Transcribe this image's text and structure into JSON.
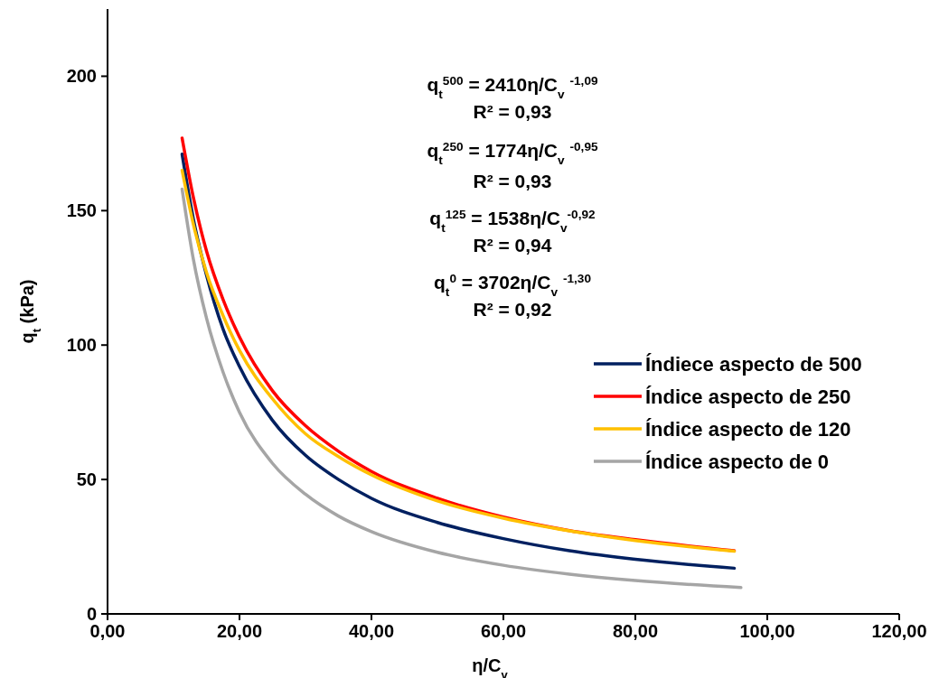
{
  "chart_data": {
    "type": "line",
    "xlabel": "η/C$_{v}$",
    "ylabel": "q$_{t}$ (kPa)",
    "xlim": [
      0,
      120
    ],
    "ylim": [
      0,
      225
    ],
    "xticks": [
      {
        "value": 0,
        "label": "0,00"
      },
      {
        "value": 20,
        "label": "20,00"
      },
      {
        "value": 40,
        "label": "40,00"
      },
      {
        "value": 60,
        "label": "60,00"
      },
      {
        "value": 80,
        "label": "80,00"
      },
      {
        "value": 100,
        "label": "100,00"
      },
      {
        "value": 120,
        "label": "120,00"
      }
    ],
    "yticks": [
      0,
      50,
      100,
      150,
      200
    ],
    "grid": false,
    "legend": "right",
    "marker": "none",
    "line_style": "solid",
    "x": [
      11.3,
      13,
      15,
      17.5,
      20,
      25,
      30,
      35,
      40,
      50,
      60,
      70,
      80,
      95
    ],
    "series": [
      {
        "name": "Índiece aspecto de 500",
        "color": "#002060",
        "values": [
          171,
          147,
          126,
          106,
          92,
          72,
          59,
          50,
          43,
          34,
          28,
          23.5,
          20.3,
          17
        ]
      },
      {
        "name": "Índice aspecto de 250",
        "color": "#ff0000",
        "values": [
          177,
          155,
          135,
          117,
          103,
          83,
          70,
          60.5,
          53,
          43,
          36,
          31,
          27.6,
          23.5
        ]
      },
      {
        "name": "Índice aspecto de 120",
        "color": "#ffc000",
        "values": [
          165,
          145,
          127,
          111,
          98,
          80,
          67,
          58.5,
          51.7,
          42,
          35.6,
          30.9,
          27.3,
          23.3
        ]
      },
      {
        "name": "Índice aspecto de 0",
        "color": "#a5a5a5",
        "x": [
          11.3,
          13,
          15,
          17.5,
          20,
          25,
          30,
          35,
          40,
          50,
          60,
          70,
          80,
          96
        ],
        "values": [
          158,
          132,
          110,
          90,
          75,
          56,
          44.5,
          36.4,
          30.6,
          22.9,
          18.1,
          14.8,
          12.4,
          9.8
        ]
      }
    ],
    "annotations": [
      "q$_{t}$$^{500}$ = 2410η/C$_{v}$ $^{-1,09}$",
      "R² = 0,93",
      "q$_{t}$$^{250}$ = 1774η/C$_{v}$ $^{-0,95}$",
      "R² = 0,93",
      "q$_{t}$$^{125}$ = 1538η/C$_{v}$$^{-0,92}$",
      "R² = 0,94",
      "q$_{t}$$^{0}$ = 3702η/C$_{v}$ $^{-1,30}$",
      "R² = 0,92"
    ]
  }
}
